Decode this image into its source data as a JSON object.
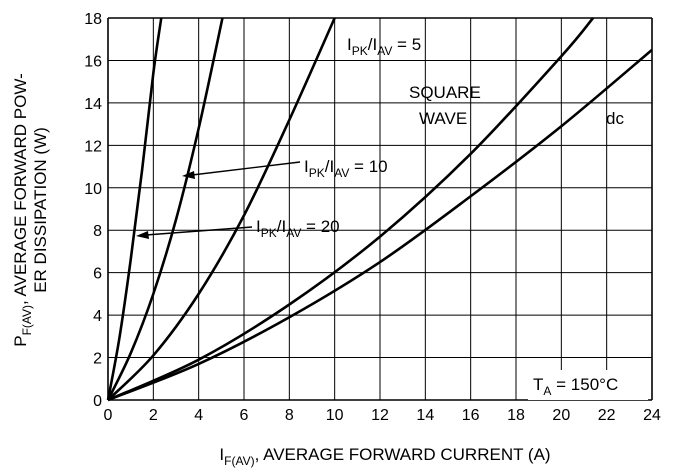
{
  "chart_data": {
    "type": "line",
    "xlim": [
      0,
      24
    ],
    "ylim": [
      0,
      18
    ],
    "x_ticks": [
      0,
      2,
      4,
      6,
      8,
      10,
      12,
      14,
      16,
      18,
      20,
      22,
      24
    ],
    "y_ticks": [
      0,
      2,
      4,
      6,
      8,
      10,
      12,
      14,
      16,
      18
    ],
    "grid": true,
    "xlabel": {
      "main": "I",
      "sub": "F(AV)",
      "rest": ", AVERAGE FORWARD CURRENT (A)"
    },
    "ylabel": {
      "line1_main": "P",
      "line1_sub": "F(AV)",
      "line1_rest": ", AVERAGE FORWARD POW-",
      "line2": "ER DISSIPATION (W)"
    },
    "condition": {
      "main": "T",
      "sub": "A",
      "rest": " = 150°C"
    },
    "series": [
      {
        "name": "IPK/IAV = 20",
        "x": [
          0,
          0.5,
          1.0,
          1.5,
          2.0,
          2.35
        ],
        "y": [
          0,
          2.9,
          6.6,
          10.8,
          15.4,
          18
        ]
      },
      {
        "name": "IPK/IAV = 10",
        "x": [
          0,
          1,
          2,
          3,
          4,
          5.05
        ],
        "y": [
          0,
          2.2,
          5.0,
          8.5,
          12.8,
          18
        ]
      },
      {
        "name": "IPK/IAV = 5",
        "x": [
          0,
          2,
          4,
          6,
          8,
          10
        ],
        "y": [
          0,
          2.1,
          5.0,
          8.7,
          13.2,
          18
        ]
      },
      {
        "name": "SQUARE WAVE",
        "x": [
          0,
          4,
          8,
          12,
          16,
          20,
          21.4
        ],
        "y": [
          0,
          1.9,
          4.5,
          7.7,
          11.6,
          16.2,
          18
        ]
      },
      {
        "name": "dc",
        "x": [
          0,
          4,
          8,
          12,
          16,
          20,
          24
        ],
        "y": [
          0,
          1.7,
          3.9,
          6.5,
          9.6,
          12.9,
          16.5
        ]
      }
    ],
    "annotations": [
      {
        "main": "I",
        "sub": "PK",
        "mid": "/I",
        "sub2": "AV",
        "rest": " = 5"
      },
      {
        "main": "I",
        "sub": "PK",
        "mid": "/I",
        "sub2": "AV",
        "rest": " = 10"
      },
      {
        "main": "I",
        "sub": "PK",
        "mid": "/I",
        "sub2": "AV",
        "rest": " = 20"
      },
      {
        "text": "SQUARE"
      },
      {
        "text": "WAVE"
      },
      {
        "text": "dc"
      }
    ]
  }
}
